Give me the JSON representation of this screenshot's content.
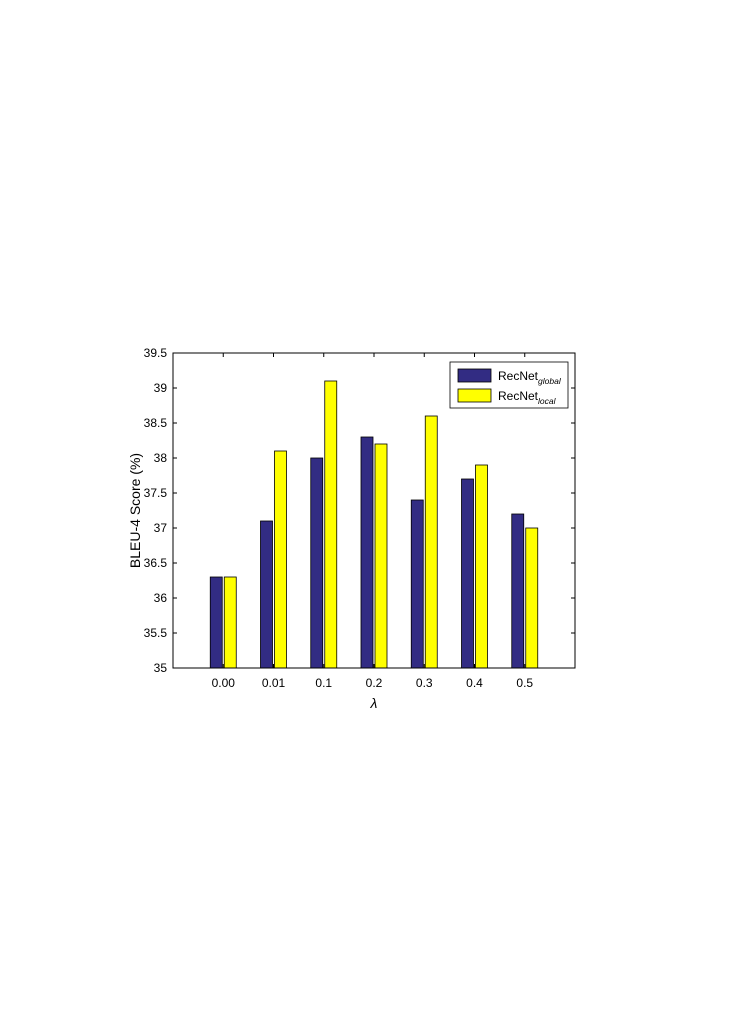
{
  "chart_data": {
    "type": "bar",
    "title": "",
    "xlabel": "λ",
    "ylabel": "BLEU-4 Score (%)",
    "ylim": [
      35,
      39.5
    ],
    "yticks": [
      "35",
      "35.5",
      "36",
      "36.5",
      "37",
      "37.5",
      "38",
      "38.5",
      "39",
      "39.5"
    ],
    "categories": [
      "0.00",
      "0.01",
      "0.1",
      "0.2",
      "0.3",
      "0.4",
      "0.5"
    ],
    "series": [
      {
        "name": "RecNet",
        "name_sub": "global",
        "color": "#322c83",
        "values": [
          36.3,
          37.1,
          38.0,
          38.3,
          37.4,
          37.7,
          37.2
        ]
      },
      {
        "name": "RecNet",
        "name_sub": "local",
        "color": "#ffff00",
        "values": [
          36.3,
          38.1,
          39.1,
          38.2,
          38.6,
          37.9,
          37.0
        ]
      }
    ],
    "legend_position": "top-right",
    "grid": false
  }
}
